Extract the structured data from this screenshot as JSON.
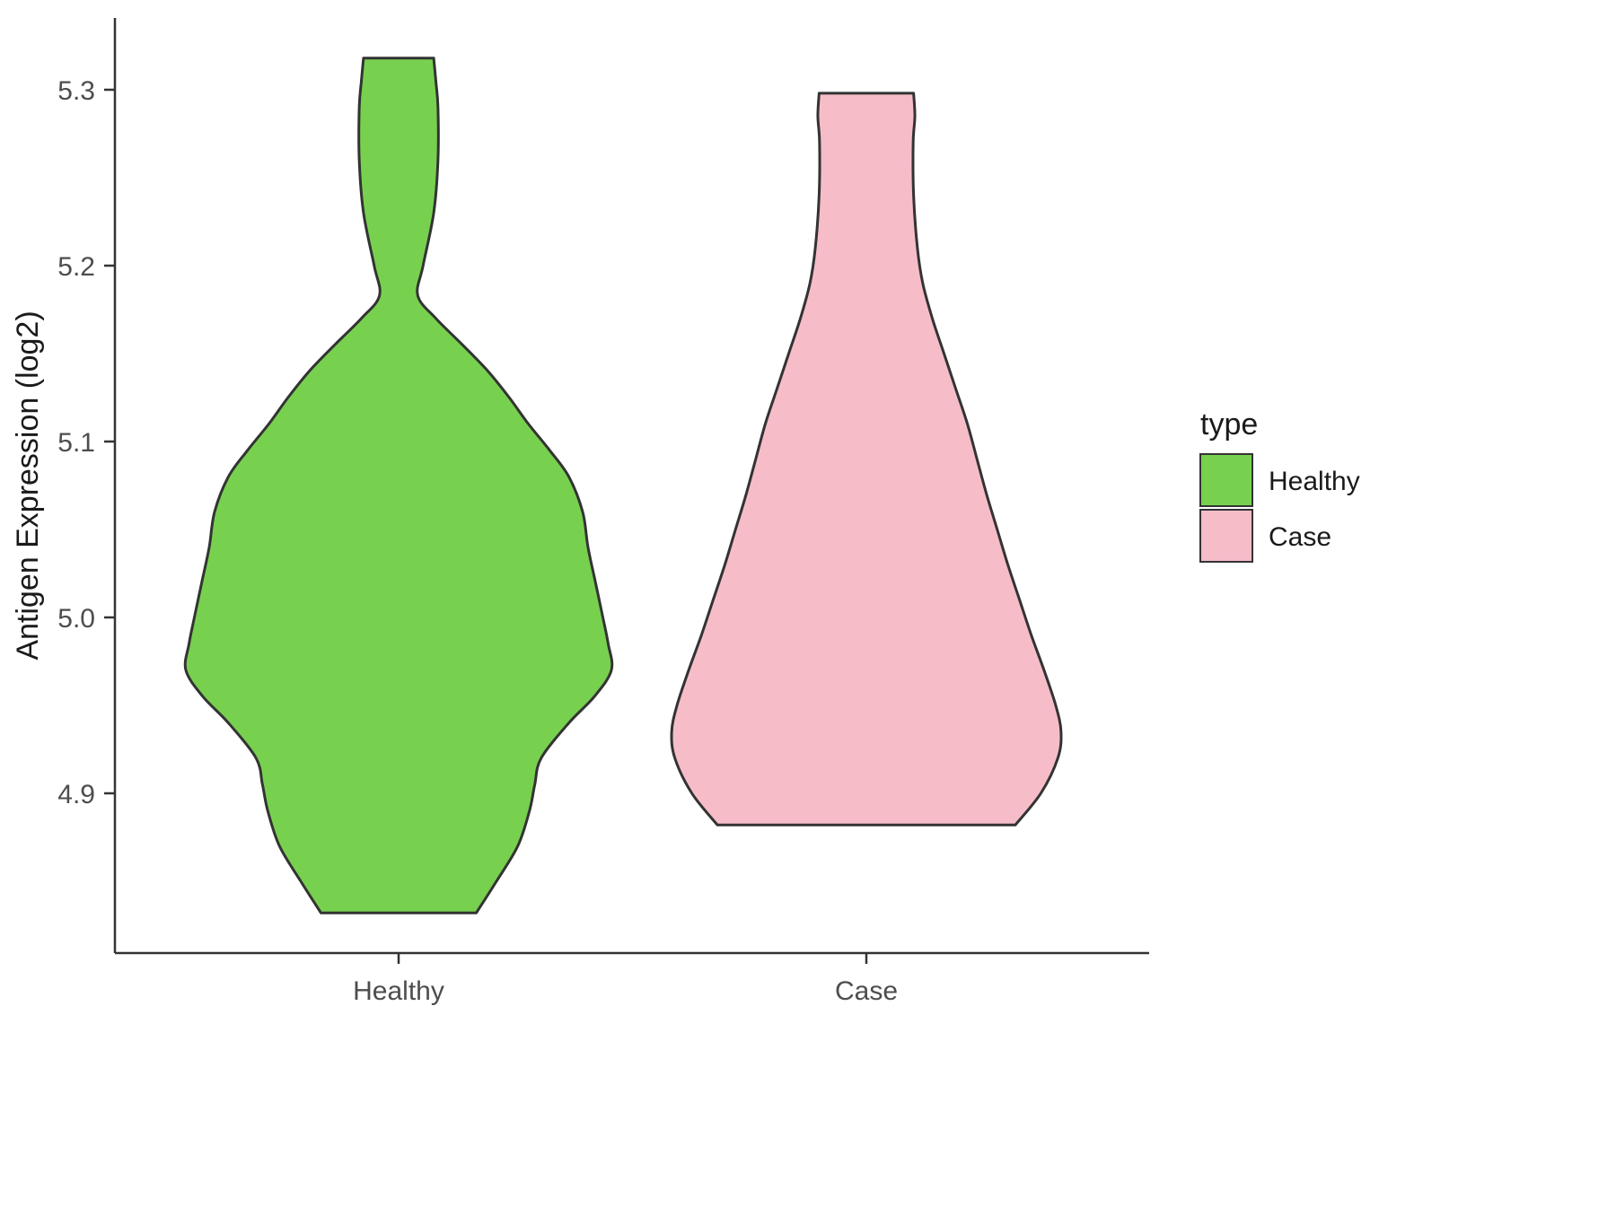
{
  "chart_data": {
    "type": "violin",
    "title": "",
    "xlabel": "",
    "ylabel": "Antigen Expression (log2)",
    "categories": [
      "Healthy",
      "Case"
    ],
    "y_ticks": [
      4.9,
      5.0,
      5.1,
      5.2,
      5.3
    ],
    "ylim": [
      4.81,
      5.34
    ],
    "grid": false,
    "outline_color": "#333333",
    "axis_color": "#333333",
    "tick_label_color": "#4d4d4d",
    "text_color": "#1a1a1a",
    "legend": {
      "title": "type",
      "position": "right",
      "entries": [
        {
          "label": "Healthy",
          "color": "#77d14f"
        },
        {
          "label": "Case",
          "color": "#f6bdc9"
        }
      ]
    },
    "series": [
      {
        "name": "Healthy",
        "color": "#77d14f",
        "y_min": 4.832,
        "y_max": 5.318,
        "profile": [
          [
            4.832,
            0.365
          ],
          [
            4.85,
            0.46
          ],
          [
            4.87,
            0.56
          ],
          [
            4.89,
            0.615
          ],
          [
            4.905,
            0.64
          ],
          [
            4.92,
            0.67
          ],
          [
            4.94,
            0.8
          ],
          [
            4.955,
            0.92
          ],
          [
            4.97,
            1.0
          ],
          [
            4.985,
            0.985
          ],
          [
            5.0,
            0.96
          ],
          [
            5.02,
            0.925
          ],
          [
            5.04,
            0.89
          ],
          [
            5.06,
            0.865
          ],
          [
            5.08,
            0.8
          ],
          [
            5.095,
            0.71
          ],
          [
            5.11,
            0.61
          ],
          [
            5.125,
            0.52
          ],
          [
            5.14,
            0.42
          ],
          [
            5.155,
            0.3
          ],
          [
            5.17,
            0.175
          ],
          [
            5.183,
            0.09
          ],
          [
            5.2,
            0.115
          ],
          [
            5.23,
            0.165
          ],
          [
            5.26,
            0.185
          ],
          [
            5.29,
            0.185
          ],
          [
            5.305,
            0.175
          ],
          [
            5.318,
            0.165
          ]
        ]
      },
      {
        "name": "Case",
        "color": "#f6bdc9",
        "y_min": 4.882,
        "y_max": 5.298,
        "profile": [
          [
            4.882,
            0.7
          ],
          [
            4.9,
            0.82
          ],
          [
            4.92,
            0.9
          ],
          [
            4.935,
            0.915
          ],
          [
            4.95,
            0.89
          ],
          [
            4.97,
            0.835
          ],
          [
            4.99,
            0.775
          ],
          [
            5.01,
            0.72
          ],
          [
            5.03,
            0.665
          ],
          [
            5.05,
            0.615
          ],
          [
            5.07,
            0.565
          ],
          [
            5.09,
            0.52
          ],
          [
            5.11,
            0.475
          ],
          [
            5.13,
            0.42
          ],
          [
            5.15,
            0.365
          ],
          [
            5.17,
            0.31
          ],
          [
            5.19,
            0.265
          ],
          [
            5.21,
            0.24
          ],
          [
            5.24,
            0.222
          ],
          [
            5.27,
            0.22
          ],
          [
            5.285,
            0.228
          ],
          [
            5.298,
            0.222
          ]
        ]
      }
    ]
  }
}
